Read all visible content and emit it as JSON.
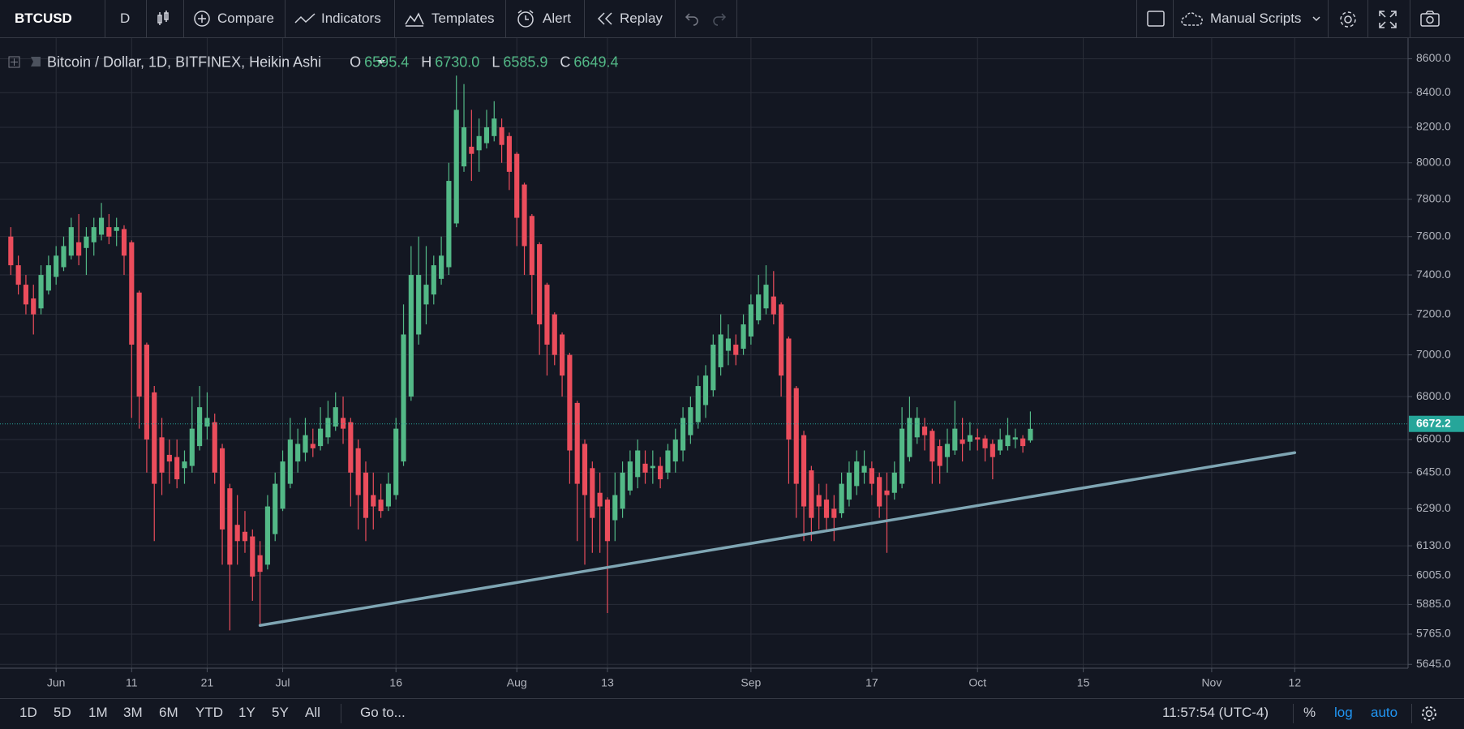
{
  "toolbar": {
    "symbol": "BTCUSD",
    "interval": "D",
    "compare": "Compare",
    "indicators": "Indicators",
    "templates": "Templates",
    "alert": "Alert",
    "replay": "Replay",
    "scripts": "Manual Scripts"
  },
  "legend": {
    "title": "Bitcoin / Dollar, 1D, BITFINEX, Heikin Ashi",
    "items": [
      {
        "key": "O",
        "value": "6595.4"
      },
      {
        "key": "H",
        "value": "6730.0"
      },
      {
        "key": "L",
        "value": "6585.9"
      },
      {
        "key": "C",
        "value": "6649.4"
      }
    ]
  },
  "bottom": {
    "ranges": [
      "1D",
      "5D",
      "1M",
      "3M",
      "6M",
      "YTD",
      "1Y",
      "5Y",
      "All"
    ],
    "goto": "Go to...",
    "time": "11:57:54 (UTC-4)",
    "percent": "%",
    "log": "log",
    "auto": "auto"
  },
  "chart_data": {
    "type": "candlestick",
    "log_scale": true,
    "grid": true,
    "up_color": "#53b987",
    "down_color": "#eb4d5c",
    "x": [
      "05-26",
      "05-27",
      "05-28",
      "05-29",
      "05-30",
      "05-31",
      "06-01",
      "06-02",
      "06-03",
      "06-04",
      "06-05",
      "06-06",
      "06-07",
      "06-08",
      "06-09",
      "06-10",
      "06-11",
      "06-12",
      "06-13",
      "06-14",
      "06-15",
      "06-16",
      "06-17",
      "06-18",
      "06-19",
      "06-20",
      "06-21",
      "06-22",
      "06-23",
      "06-24",
      "06-25",
      "06-26",
      "06-27",
      "06-28",
      "06-29",
      "06-30",
      "07-01",
      "07-02",
      "07-03",
      "07-04",
      "07-05",
      "07-06",
      "07-07",
      "07-08",
      "07-09",
      "07-10",
      "07-11",
      "07-12",
      "07-13",
      "07-14",
      "07-15",
      "07-16",
      "07-17",
      "07-18",
      "07-19",
      "07-20",
      "07-21",
      "07-22",
      "07-23",
      "07-24",
      "07-25",
      "07-26",
      "07-27",
      "07-28",
      "07-29",
      "07-30",
      "07-31",
      "08-01",
      "08-02",
      "08-03",
      "08-04",
      "08-05",
      "08-06",
      "08-07",
      "08-08",
      "08-09",
      "08-10",
      "08-11",
      "08-12",
      "08-13",
      "08-14",
      "08-15",
      "08-16",
      "08-17",
      "08-18",
      "08-19",
      "08-20",
      "08-21",
      "08-22",
      "08-23",
      "08-24",
      "08-25",
      "08-26",
      "08-27",
      "08-28",
      "08-29",
      "08-30",
      "08-31",
      "09-01",
      "09-02",
      "09-03",
      "09-04",
      "09-05",
      "09-06",
      "09-07",
      "09-08",
      "09-09",
      "09-10",
      "09-11",
      "09-12",
      "09-13",
      "09-14",
      "09-15",
      "09-16",
      "09-17",
      "09-18",
      "09-19",
      "09-20",
      "09-21",
      "09-22",
      "09-23",
      "09-24",
      "09-25",
      "09-26",
      "09-27",
      "09-28",
      "09-29",
      "09-30",
      "10-01",
      "10-02",
      "10-03",
      "10-04",
      "10-05",
      "10-06",
      "10-07",
      "10-08"
    ],
    "open": [
      7600,
      7450,
      7350,
      7280,
      7230,
      7320,
      7390,
      7440,
      7500,
      7570,
      7540,
      7570,
      7610,
      7650,
      7630,
      7640,
      7570,
      7310,
      7050,
      6820,
      6610,
      6530,
      6520,
      6470,
      6480,
      6570,
      6660,
      6680,
      6560,
      6380,
      6220,
      6190,
      6170,
      6090,
      6050,
      6180,
      6290,
      6400,
      6500,
      6540,
      6580,
      6570,
      6610,
      6660,
      6700,
      6680,
      6560,
      6450,
      6350,
      6330,
      6300,
      6350,
      6500,
      6800,
      7100,
      7250,
      7300,
      7380,
      7440,
      7670,
      7980,
      8090,
      8070,
      8110,
      8150,
      8200,
      8150,
      8050,
      7880,
      7710,
      7560,
      7350,
      7200,
      7100,
      7000,
      6770,
      6580,
      6470,
      6360,
      6330,
      6240,
      6290,
      6370,
      6430,
      6490,
      6470,
      6480,
      6450,
      6500,
      6550,
      6620,
      6680,
      6760,
      6830,
      6940,
      7020,
      7050,
      7030,
      7090,
      7170,
      7230,
      7290,
      7250,
      7080,
      6840,
      6620,
      6460,
      6350,
      6330,
      6290,
      6270,
      6330,
      6390,
      6450,
      6470,
      6430,
      6370,
      6360,
      6400,
      6520,
      6610,
      6660,
      6640,
      6570,
      6520,
      6550,
      6600,
      6590,
      6610,
      6605,
      6580,
      6550,
      6570,
      6600,
      6605,
      6595.4
    ],
    "high": [
      7650,
      7500,
      7400,
      7350,
      7450,
      7500,
      7550,
      7600,
      7700,
      7720,
      7650,
      7700,
      7780,
      7720,
      7700,
      7660,
      7580,
      7320,
      7060,
      6850,
      6700,
      6600,
      6600,
      6550,
      6800,
      6850,
      6820,
      6720,
      6580,
      6400,
      6350,
      6280,
      6200,
      6150,
      6350,
      6450,
      6550,
      6700,
      6650,
      6700,
      6650,
      6750,
      6780,
      6820,
      6800,
      6700,
      6600,
      6500,
      6450,
      6400,
      6450,
      6700,
      7250,
      7550,
      7600,
      7550,
      7500,
      7600,
      8000,
      8500,
      8450,
      8300,
      8250,
      8300,
      8350,
      8250,
      8170,
      8060,
      7890,
      7720,
      7570,
      7360,
      7210,
      7110,
      7010,
      6780,
      6600,
      6500,
      6450,
      6340,
      6450,
      6500,
      6550,
      6600,
      6550,
      6550,
      6520,
      6580,
      6650,
      6750,
      6800,
      6900,
      6950,
      7100,
      7200,
      7150,
      7100,
      7200,
      7300,
      7400,
      7450,
      7420,
      7260,
      7090,
      6850,
      6640,
      6480,
      6400,
      6400,
      6350,
      6450,
      6500,
      6550,
      6550,
      6500,
      6450,
      6450,
      6500,
      6750,
      6800,
      6750,
      6700,
      6650,
      6600,
      6650,
      6780,
      6700,
      6680,
      6650,
      6620,
      6600,
      6650,
      6700,
      6650,
      6620,
      6730
    ],
    "low": [
      7400,
      7300,
      7200,
      7100,
      7200,
      7300,
      7350,
      7420,
      7480,
      7450,
      7400,
      7500,
      7580,
      7560,
      7550,
      7400,
      6700,
      6650,
      6450,
      6150,
      6350,
      6400,
      6380,
      6400,
      6450,
      6550,
      6600,
      6400,
      6050,
      5780,
      6050,
      6100,
      5900,
      5800,
      6030,
      6150,
      6280,
      6380,
      6450,
      6500,
      6520,
      6550,
      6580,
      6640,
      6580,
      6300,
      6200,
      6150,
      6200,
      6250,
      6280,
      6330,
      6480,
      6780,
      7050,
      7150,
      7250,
      7350,
      7400,
      7650,
      7950,
      7900,
      7950,
      8080,
      8120,
      8000,
      7850,
      7550,
      7400,
      7200,
      7000,
      6900,
      6950,
      6800,
      6400,
      6150,
      6050,
      6100,
      6100,
      5850,
      6150,
      6250,
      6350,
      6380,
      6400,
      6400,
      6380,
      6420,
      6450,
      6500,
      6580,
      6650,
      6700,
      6800,
      6900,
      6950,
      6950,
      7000,
      7050,
      7150,
      7200,
      7150,
      6800,
      6400,
      6250,
      6150,
      6150,
      6200,
      6200,
      6150,
      6250,
      6300,
      6350,
      6400,
      6350,
      6250,
      6100,
      6330,
      6380,
      6500,
      6580,
      6550,
      6400,
      6400,
      6450,
      6530,
      6500,
      6550,
      6550,
      6500,
      6420,
      6530,
      6550,
      6560,
      6540,
      6585.9
    ],
    "close": [
      7450,
      7350,
      7250,
      7200,
      7400,
      7450,
      7500,
      7550,
      7650,
      7500,
      7600,
      7650,
      7700,
      7600,
      7650,
      7500,
      7050,
      6800,
      6600,
      6400,
      6450,
      6500,
      6420,
      6500,
      6650,
      6750,
      6700,
      6450,
      6200,
      6050,
      6150,
      6150,
      6000,
      6020,
      6300,
      6400,
      6500,
      6600,
      6580,
      6620,
      6560,
      6650,
      6700,
      6750,
      6650,
      6450,
      6350,
      6250,
      6300,
      6280,
      6400,
      6650,
      7100,
      7400,
      7400,
      7350,
      7450,
      7500,
      7900,
      8300,
      8200,
      8050,
      8150,
      8200,
      8250,
      8100,
      7950,
      7700,
      7550,
      7400,
      7150,
      7050,
      7000,
      6900,
      6550,
      6400,
      6350,
      6250,
      6300,
      6150,
      6350,
      6450,
      6500,
      6550,
      6450,
      6480,
      6420,
      6550,
      6600,
      6700,
      6750,
      6850,
      6900,
      7050,
      7100,
      7080,
      7000,
      7150,
      7250,
      7300,
      7350,
      7200,
      6900,
      6600,
      6400,
      6300,
      6250,
      6300,
      6250,
      6250,
      6400,
      6450,
      6500,
      6480,
      6400,
      6300,
      6350,
      6450,
      6650,
      6700,
      6700,
      6620,
      6500,
      6480,
      6580,
      6650,
      6580,
      6620,
      6600,
      6560,
      6520,
      6600,
      6620,
      6610,
      6570,
      6649.4
    ],
    "trendline": {
      "x": [
        "06-28",
        "11-12"
      ],
      "values": [
        5800,
        6540
      ],
      "color": "#7fa6b4"
    },
    "last_price": 6672.2,
    "last_price_color": "#26a69a",
    "xlim": [
      "05-25",
      "11-27"
    ],
    "xticks": [
      {
        "value": "06-01",
        "label": "Jun"
      },
      {
        "value": "06-11",
        "label": "11"
      },
      {
        "value": "06-21",
        "label": "21"
      },
      {
        "value": "07-01",
        "label": "Jul"
      },
      {
        "value": "07-16",
        "label": "16"
      },
      {
        "value": "08-01",
        "label": "Aug"
      },
      {
        "value": "08-13",
        "label": "13"
      },
      {
        "value": "09-01",
        "label": "Sep"
      },
      {
        "value": "09-17",
        "label": "17"
      },
      {
        "value": "10-01",
        "label": "Oct"
      },
      {
        "value": "10-15",
        "label": "15"
      },
      {
        "value": "11-01",
        "label": "Nov"
      },
      {
        "value": "11-12",
        "label": "12"
      }
    ],
    "ylim": [
      5630,
      8690
    ],
    "yticks": [
      {
        "value": 5645,
        "label": "5645.0"
      },
      {
        "value": 5765,
        "label": "5765.0"
      },
      {
        "value": 5885,
        "label": "5885.0"
      },
      {
        "value": 6005,
        "label": "6005.0"
      },
      {
        "value": 6130,
        "label": "6130.0"
      },
      {
        "value": 6290,
        "label": "6290.0"
      },
      {
        "value": 6450,
        "label": "6450.0"
      },
      {
        "value": 6600,
        "label": "6600.0"
      },
      {
        "value": 6800,
        "label": "6800.0"
      },
      {
        "value": 7000,
        "label": "7000.0"
      },
      {
        "value": 7200,
        "label": "7200.0"
      },
      {
        "value": 7400,
        "label": "7400.0"
      },
      {
        "value": 7600,
        "label": "7600.0"
      },
      {
        "value": 7800,
        "label": "7800.0"
      },
      {
        "value": 8000,
        "label": "8000.0"
      },
      {
        "value": 8200,
        "label": "8200.0"
      },
      {
        "value": 8400,
        "label": "8400.0"
      },
      {
        "value": 8600,
        "label": "8600.0"
      }
    ]
  }
}
